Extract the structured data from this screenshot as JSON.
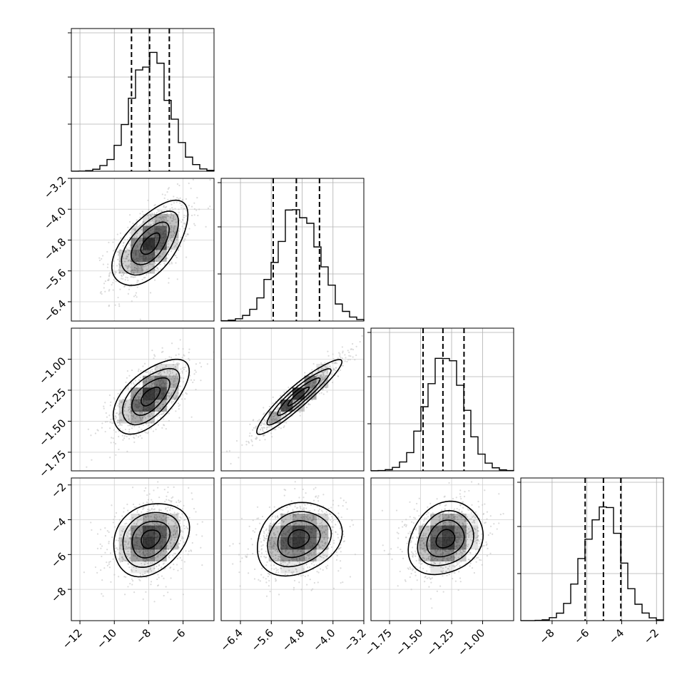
{
  "chart_data": {
    "type": "corner",
    "grid": true,
    "scatter_color": "#bdbdbd",
    "shade_color": "#000000",
    "line_color": "#000000",
    "parameters": [
      {
        "index": 0,
        "range": [
          -12.5,
          -4.2
        ],
        "ticks": [
          -12,
          -10,
          -8,
          -6
        ],
        "tick_labels": [
          "−12",
          "−10",
          "−8",
          "−6"
        ],
        "mean": -7.9,
        "sd": 1.1,
        "quantiles": [
          -9.0,
          -7.95,
          -6.8
        ]
      },
      {
        "index": 1,
        "range": [
          -6.9,
          -3.2
        ],
        "ticks": [
          -6.4,
          -5.6,
          -4.8,
          -4.0,
          -3.2
        ],
        "tick_labels": [
          "−6.4",
          "−5.6",
          "−4.8",
          "−4.0",
          "−3.2"
        ],
        "mean": -4.9,
        "sd": 0.55,
        "quantiles": [
          -5.55,
          -4.95,
          -4.35
        ]
      },
      {
        "index": 2,
        "range": [
          -1.9,
          -0.75
        ],
        "ticks": [
          -1.75,
          -1.5,
          -1.25,
          -1.0
        ],
        "tick_labels": [
          "−1.75",
          "−1.50",
          "−1.25",
          "−1.00"
        ],
        "mean": -1.3,
        "sd": 0.15,
        "quantiles": [
          -1.48,
          -1.32,
          -1.15
        ]
      },
      {
        "index": 3,
        "range": [
          -9.8,
          -1.6
        ],
        "ticks": [
          -8,
          -6,
          -4,
          -2
        ],
        "tick_labels": [
          "−8",
          "−6",
          "−4",
          "−2"
        ],
        "mean": -5.1,
        "sd": 1.05,
        "quantiles": [
          -6.1,
          -5.05,
          -4.05
        ]
      }
    ],
    "correlations": [
      {
        "pair": [
          1,
          0
        ],
        "rho": 0.6
      },
      {
        "pair": [
          2,
          0
        ],
        "rho": 0.6
      },
      {
        "pair": [
          2,
          1
        ],
        "rho": 0.93
      },
      {
        "pair": [
          3,
          0
        ],
        "rho": 0.25
      },
      {
        "pair": [
          3,
          1
        ],
        "rho": 0.2
      },
      {
        "pair": [
          3,
          2
        ],
        "rho": 0.2
      }
    ],
    "contour_levels_sigma": [
      0.5,
      1.0,
      1.5,
      2.0
    ]
  }
}
